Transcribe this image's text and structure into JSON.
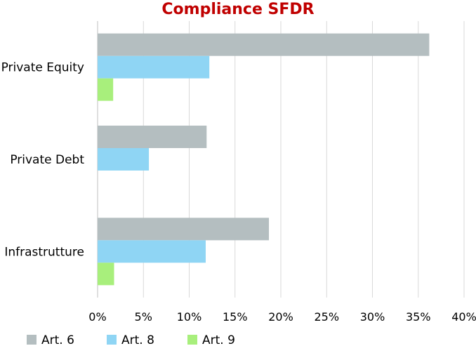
{
  "colors": {
    "title": "#c00000",
    "grid": "#d9d9d9",
    "axis": "#bfbfbf"
  },
  "chart_data": {
    "type": "bar",
    "orientation": "horizontal",
    "title": "Compliance SFDR",
    "xlabel": "",
    "ylabel": "",
    "categories": [
      "Private Equity",
      "Private Debt",
      "Infrastrutture"
    ],
    "series": [
      {
        "name": "Art. 6",
        "color": "#b4bec0",
        "values": [
          36.2,
          11.9,
          18.7
        ]
      },
      {
        "name": "Art. 8",
        "color": "#8fd5f4",
        "values": [
          12.2,
          5.6,
          11.8
        ]
      },
      {
        "name": "Art. 9",
        "color": "#a8ef7c",
        "values": [
          1.7,
          0,
          1.8
        ]
      }
    ],
    "xlim": [
      0,
      40
    ],
    "xticks": [
      0,
      5,
      10,
      15,
      20,
      25,
      30,
      35,
      40
    ],
    "xtick_labels": [
      "0%",
      "5%",
      "10%",
      "15%",
      "20%",
      "25%",
      "30%",
      "35%",
      "40%"
    ],
    "grid": true,
    "legend_position": "bottom-left"
  }
}
